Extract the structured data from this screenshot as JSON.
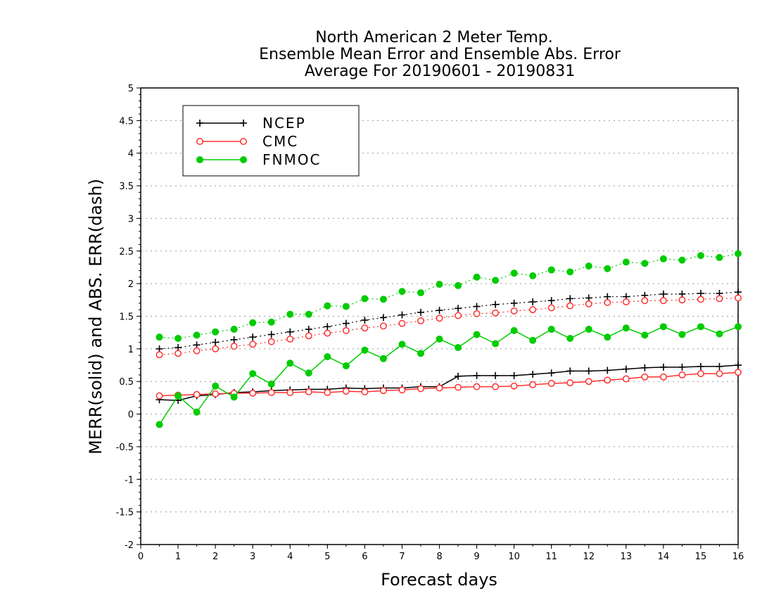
{
  "chart_data": {
    "type": "line",
    "title": [
      "North American 2 Meter Temp.",
      "Ensemble Mean Error and Ensemble Abs. Error",
      "Average For 20190601 - 20190831"
    ],
    "xlabel": "Forecast days",
    "ylabel": "MERR(solid) and ABS. ERR(dash)",
    "xlim": [
      0,
      16
    ],
    "ylim": [
      -2,
      5
    ],
    "x_ticks": [
      "0",
      "1",
      "2",
      "3",
      "4",
      "5",
      "6",
      "7",
      "8",
      "9",
      "10",
      "11",
      "12",
      "13",
      "14",
      "15",
      "16"
    ],
    "y_ticks": [
      "-2",
      "-1.5",
      "-1",
      "-0.5",
      "0",
      "0.5",
      "1",
      "1.5",
      "2",
      "2.5",
      "3",
      "3.5",
      "4",
      "4.5",
      "5"
    ],
    "grid": "horizontal dotted",
    "legend_position": "top-left",
    "x": [
      0.5,
      1,
      1.5,
      2,
      2.5,
      3,
      3.5,
      4,
      4.5,
      5,
      5.5,
      6,
      6.5,
      7,
      7.5,
      8,
      8.5,
      9,
      9.5,
      10,
      10.5,
      11,
      11.5,
      12,
      12.5,
      13,
      13.5,
      14,
      14.5,
      15,
      15.5,
      16
    ],
    "series": [
      {
        "name": "NCEP",
        "color": "#000000",
        "marker": "plus",
        "merr": [
          0.22,
          0.21,
          0.28,
          0.3,
          0.33,
          0.34,
          0.36,
          0.37,
          0.38,
          0.38,
          0.4,
          0.39,
          0.4,
          0.4,
          0.42,
          0.42,
          0.58,
          0.59,
          0.59,
          0.59,
          0.61,
          0.63,
          0.66,
          0.66,
          0.67,
          0.69,
          0.71,
          0.72,
          0.72,
          0.73,
          0.73,
          0.75
        ],
        "abs_err": [
          1.0,
          1.02,
          1.06,
          1.1,
          1.14,
          1.18,
          1.22,
          1.26,
          1.3,
          1.34,
          1.39,
          1.44,
          1.48,
          1.52,
          1.56,
          1.59,
          1.62,
          1.65,
          1.68,
          1.7,
          1.72,
          1.74,
          1.77,
          1.78,
          1.8,
          1.8,
          1.82,
          1.84,
          1.84,
          1.85,
          1.85,
          1.87
        ]
      },
      {
        "name": "CMC",
        "color": "#ff3030",
        "marker": "open-circle",
        "merr": [
          0.28,
          0.29,
          0.3,
          0.31,
          0.32,
          0.32,
          0.33,
          0.33,
          0.34,
          0.33,
          0.35,
          0.34,
          0.36,
          0.37,
          0.39,
          0.4,
          0.41,
          0.42,
          0.42,
          0.43,
          0.45,
          0.47,
          0.48,
          0.5,
          0.52,
          0.54,
          0.57,
          0.57,
          0.6,
          0.62,
          0.62,
          0.64
        ],
        "abs_err": [
          0.91,
          0.93,
          0.97,
          1.0,
          1.04,
          1.07,
          1.11,
          1.15,
          1.2,
          1.24,
          1.28,
          1.32,
          1.35,
          1.39,
          1.43,
          1.47,
          1.51,
          1.54,
          1.55,
          1.58,
          1.6,
          1.63,
          1.66,
          1.69,
          1.71,
          1.72,
          1.74,
          1.74,
          1.75,
          1.76,
          1.77,
          1.78
        ]
      },
      {
        "name": "FNMOC",
        "color": "#00cc00",
        "marker": "filled-circle",
        "merr": [
          -0.16,
          0.28,
          0.03,
          0.43,
          0.26,
          0.62,
          0.46,
          0.78,
          0.63,
          0.88,
          0.74,
          0.98,
          0.85,
          1.07,
          0.93,
          1.15,
          1.02,
          1.22,
          1.08,
          1.28,
          1.13,
          1.3,
          1.16,
          1.3,
          1.18,
          1.32,
          1.21,
          1.34,
          1.22,
          1.34,
          1.23,
          1.34
        ],
        "abs_err": [
          1.18,
          1.16,
          1.21,
          1.26,
          1.3,
          1.4,
          1.41,
          1.53,
          1.53,
          1.66,
          1.65,
          1.77,
          1.76,
          1.88,
          1.86,
          1.99,
          1.97,
          2.1,
          2.05,
          2.16,
          2.12,
          2.21,
          2.18,
          2.27,
          2.23,
          2.33,
          2.31,
          2.38,
          2.36,
          2.43,
          2.4,
          2.46
        ]
      }
    ]
  }
}
